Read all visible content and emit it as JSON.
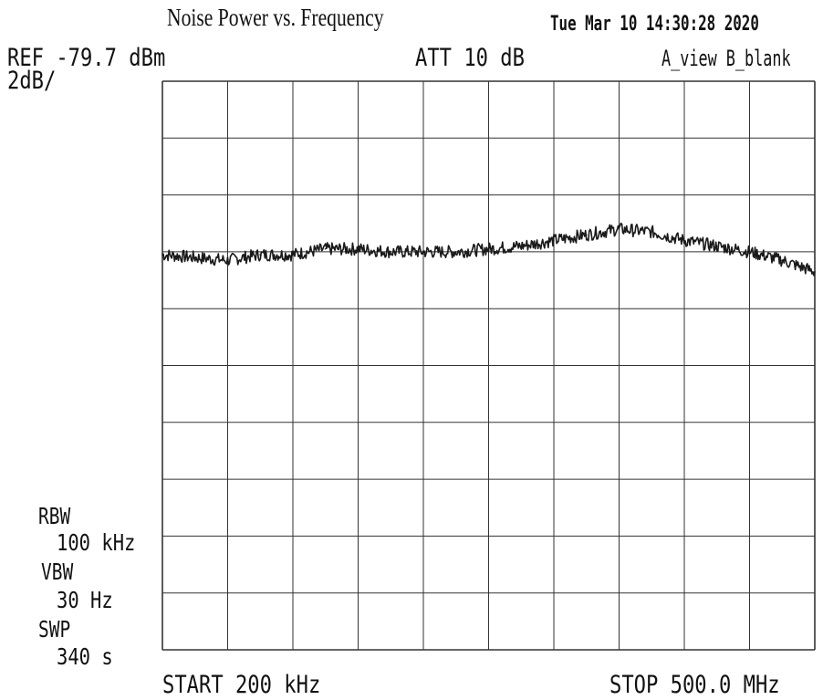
{
  "header": {
    "title": "Noise Power vs. Frequency",
    "datetime": "Tue Mar 10 14:30:28 2020",
    "ref_level": "REF -79.7 dBm",
    "scale": "2dB/",
    "attenuation": "ATT 10 dB",
    "trace_mode": "A_view B_blank"
  },
  "settings": {
    "rbw_label": "RBW",
    "rbw_value": "100 kHz",
    "vbw_label": "VBW",
    "vbw_value": "30 Hz",
    "swp_label": "SWP",
    "swp_value": "340 s"
  },
  "footer": {
    "start": "START 200 kHz",
    "stop": "STOP 500.0 MHz"
  },
  "chart_data": {
    "type": "line",
    "x_unit": "MHz",
    "y_unit": "dBm",
    "xlim": [
      0.2,
      500.0
    ],
    "ylim": [
      -99.7,
      -79.7
    ],
    "grid": true,
    "x_divisions": 10,
    "y_divisions": 10,
    "series": [
      {
        "x": [
          0.2,
          25,
          50,
          75,
          100,
          125,
          150,
          175,
          200,
          225,
          250,
          275,
          300,
          325,
          350,
          375,
          400,
          425,
          450,
          475,
          500.0
        ],
        "y": [
          -85.8,
          -85.9,
          -86.0,
          -85.8,
          -85.8,
          -85.6,
          -85.6,
          -85.7,
          -85.7,
          -85.7,
          -85.6,
          -85.5,
          -85.3,
          -85.1,
          -84.9,
          -85.0,
          -85.3,
          -85.5,
          -85.7,
          -86.0,
          -86.4
        ]
      }
    ]
  },
  "colors": {
    "background": "#ffffff",
    "grid": "#333333",
    "trace": "#1a1a1a"
  }
}
